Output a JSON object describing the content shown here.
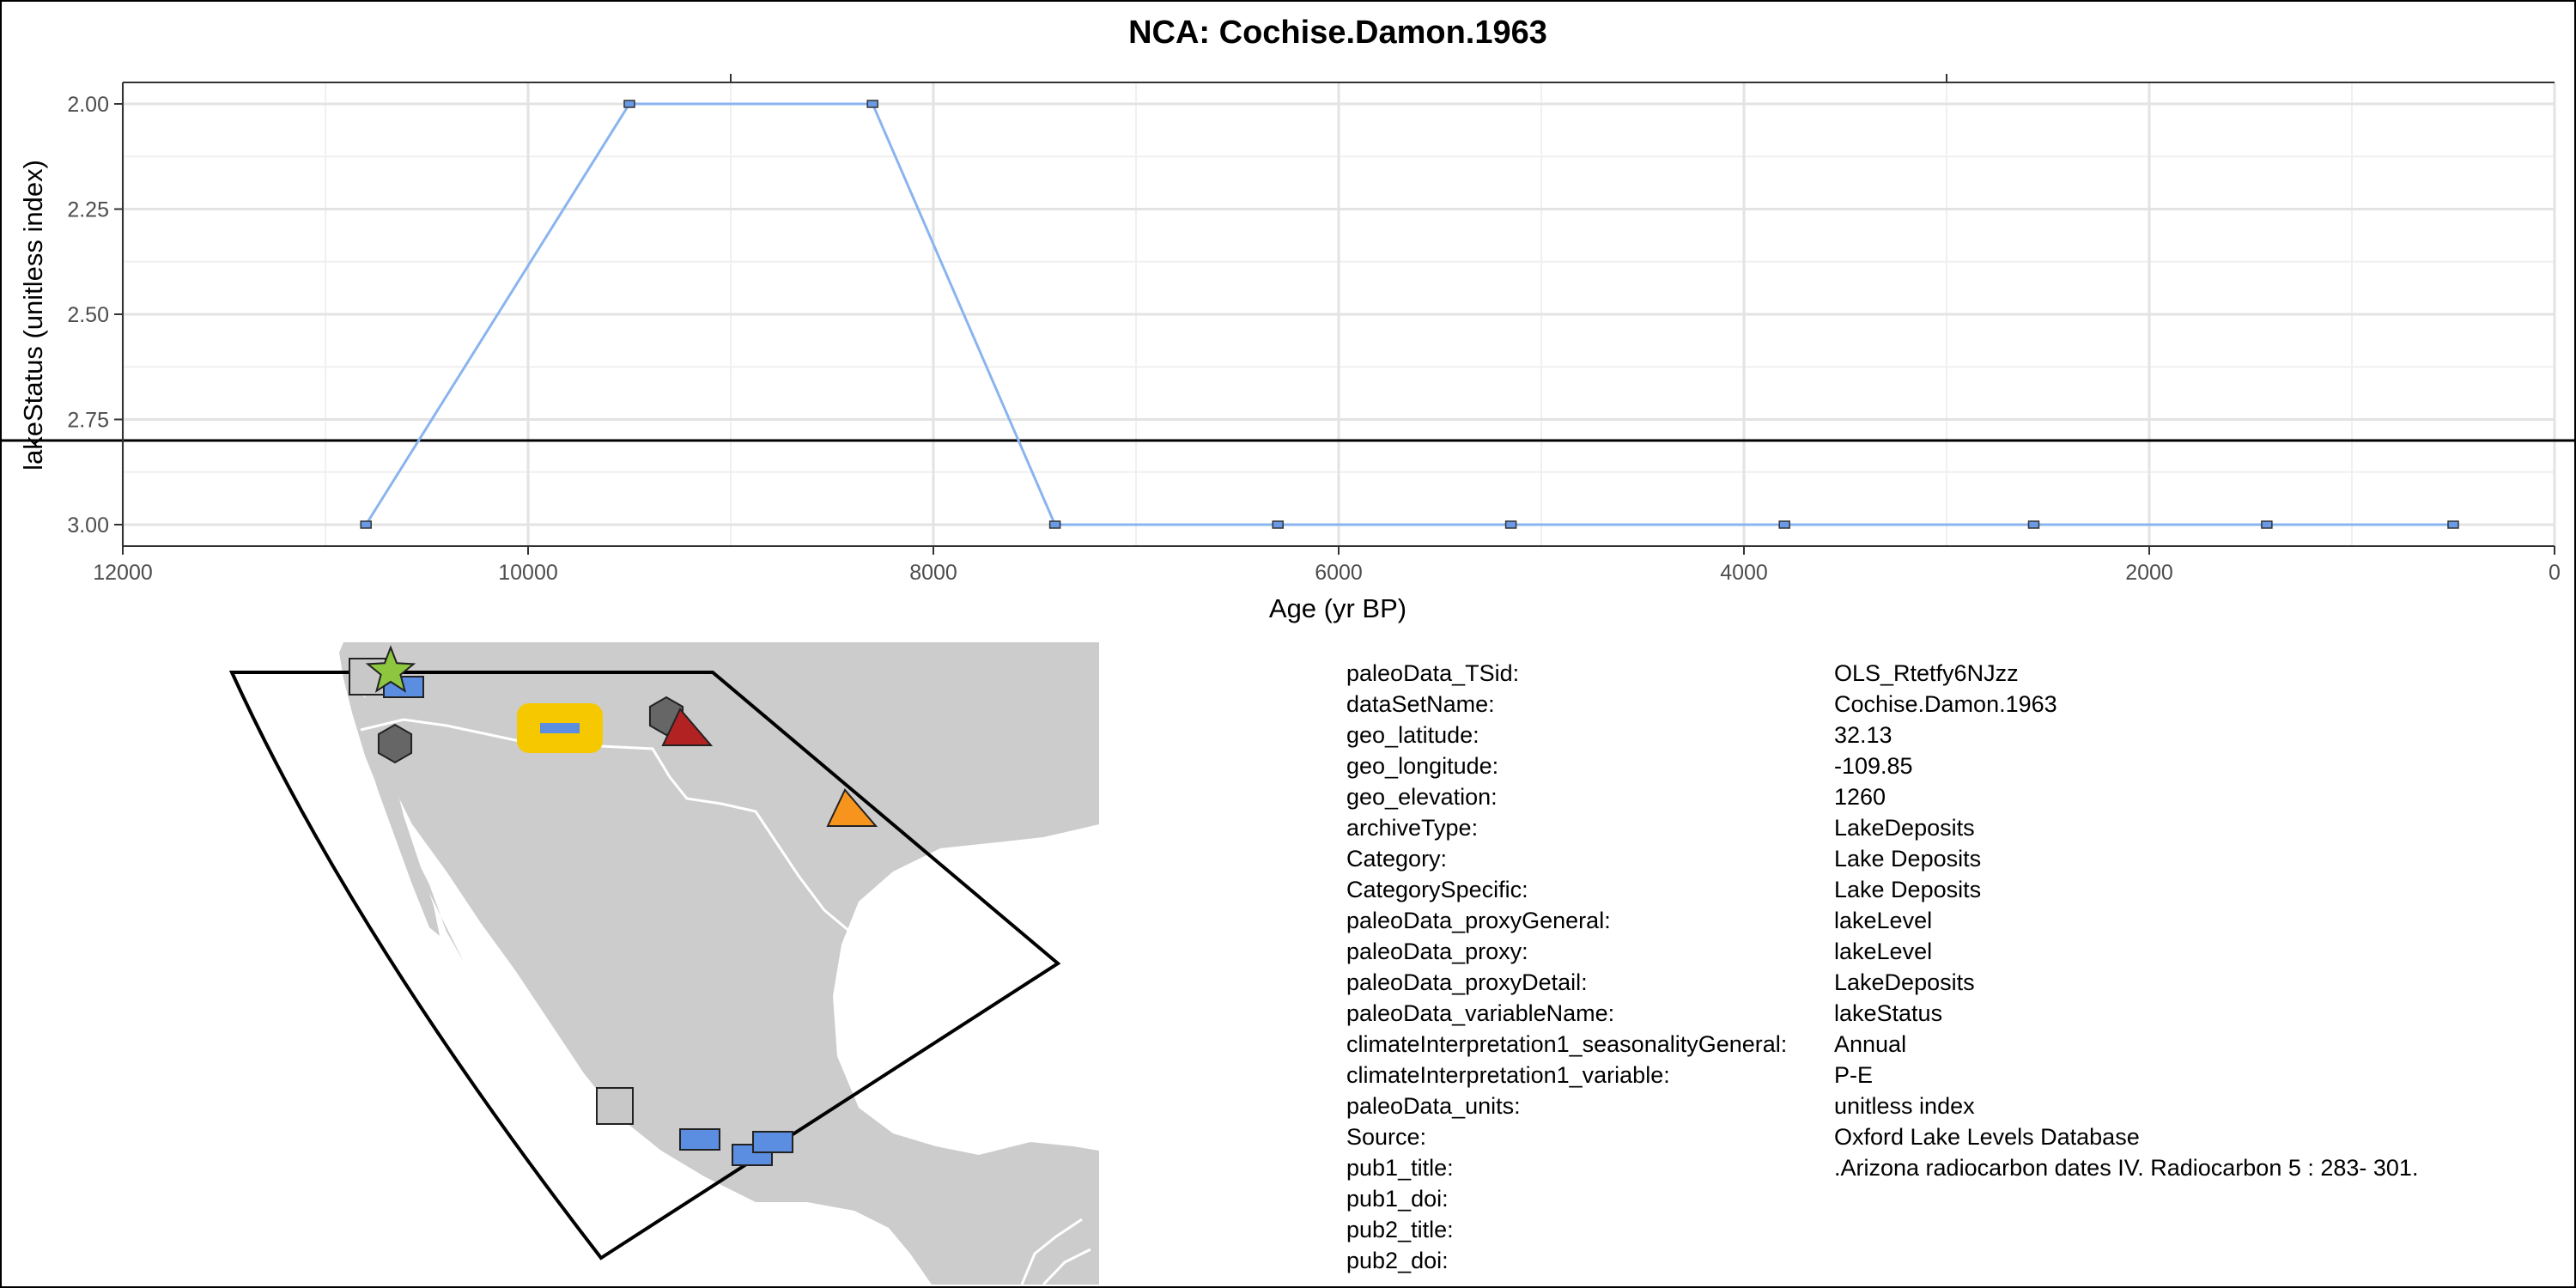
{
  "chart_data": {
    "type": "line",
    "title": "NCA: Cochise.Damon.1963",
    "xlabel": "Age (yr BP)",
    "ylabel": "lakeStatus (unitless index)",
    "x_reversed": true,
    "y_reversed": true,
    "xlim": [
      12000,
      0
    ],
    "ylim": [
      2.0,
      3.0
    ],
    "x_ticks": [
      "12000",
      "10000",
      "8000",
      "6000",
      "4000",
      "2000",
      "0"
    ],
    "y_ticks": [
      "2.00",
      "2.25",
      "2.50",
      "2.75",
      "3.00"
    ],
    "reference_line_y": 2.8,
    "grid": true,
    "series": [
      {
        "color": "#8ab4f0",
        "marker_color": "#6a9ae6",
        "x": [
          10800,
          9500,
          8300,
          7400,
          6300,
          5150,
          3800,
          2570,
          1420,
          500
        ],
        "y": [
          3.0,
          2.0,
          2.0,
          3.0,
          3.0,
          3.0,
          3.0,
          3.0,
          3.0,
          3.0
        ]
      }
    ]
  },
  "map": {
    "land_color": "#cccccc",
    "border_color": "#ffffff",
    "region_outline_color": "#000000",
    "markers": [
      {
        "shape": "square",
        "color": "#c8c8c8"
      },
      {
        "shape": "rect",
        "color": "#5b8de0"
      },
      {
        "shape": "star",
        "color": "#8dc63f"
      },
      {
        "shape": "rect",
        "color": "#5b8de0",
        "highlight": "#f5c800"
      },
      {
        "shape": "hexagon",
        "color": "#666666"
      },
      {
        "shape": "hexagon",
        "color": "#666666"
      },
      {
        "shape": "triangle",
        "color": "#b22222"
      },
      {
        "shape": "triangle",
        "color": "#f7941d"
      },
      {
        "shape": "square",
        "color": "#c8c8c8"
      },
      {
        "shape": "rect",
        "color": "#5b8de0"
      },
      {
        "shape": "rect",
        "color": "#5b8de0"
      },
      {
        "shape": "rect",
        "color": "#5b8de0"
      }
    ]
  },
  "metadata": [
    {
      "key": "paleoData_TSid:",
      "value": "OLS_Rtetfy6NJzz"
    },
    {
      "key": "dataSetName:",
      "value": "Cochise.Damon.1963"
    },
    {
      "key": "geo_latitude:",
      "value": "32.13"
    },
    {
      "key": "geo_longitude:",
      "value": "-109.85"
    },
    {
      "key": "geo_elevation:",
      "value": "1260"
    },
    {
      "key": "archiveType:",
      "value": "LakeDeposits"
    },
    {
      "key": "Category:",
      "value": "Lake Deposits"
    },
    {
      "key": "CategorySpecific:",
      "value": "Lake Deposits"
    },
    {
      "key": "paleoData_proxyGeneral:",
      "value": "lakeLevel"
    },
    {
      "key": "paleoData_proxy:",
      "value": "lakeLevel"
    },
    {
      "key": "paleoData_proxyDetail:",
      "value": "LakeDeposits"
    },
    {
      "key": "paleoData_variableName:",
      "value": "lakeStatus"
    },
    {
      "key": "climateInterpretation1_seasonalityGeneral:",
      "value": "Annual"
    },
    {
      "key": "climateInterpretation1_variable:",
      "value": "P-E"
    },
    {
      "key": "paleoData_units:",
      "value": "unitless index"
    },
    {
      "key": "Source:",
      "value": "Oxford Lake Levels Database"
    },
    {
      "key": "pub1_title:",
      "value": ".Arizona radiocarbon dates IV. Radiocarbon 5 : 283-  301."
    },
    {
      "key": "pub1_doi:",
      "value": ""
    },
    {
      "key": "pub2_title:",
      "value": ""
    },
    {
      "key": "pub2_doi:",
      "value": ""
    }
  ]
}
